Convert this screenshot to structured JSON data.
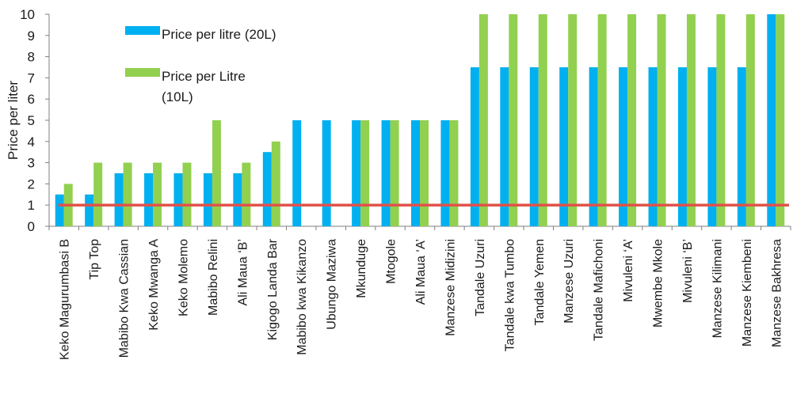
{
  "chart_data": {
    "type": "bar",
    "title": "",
    "xlabel": "",
    "ylabel": "Price per liter",
    "ylim": [
      0,
      10
    ],
    "yticks": [
      0,
      1,
      2,
      3,
      4,
      5,
      6,
      7,
      8,
      9,
      10
    ],
    "grid": false,
    "legend_position": "top-left",
    "categories": [
      "Keko Magurumbasi B",
      "Tip Top",
      "Mabibo Kwa Cassian",
      "Keko Mwanga A",
      "Keko Molemo",
      "Mabibo Relini",
      "Ali Maua ‘B’",
      "Kigogo Landa Bar",
      "Mabibo kwa Kikanzo",
      "Ubungo Maziwa",
      "Mkunduge",
      "Mtogole",
      "Ali Maua ‘A’",
      "Manzese Midizini",
      "Tandale Uzuri",
      "Tandale kwa Tumbo",
      "Tandale Yemen",
      "Manzese Uzuri",
      "Tandale Mafichoni",
      "Mivuleni ‘A’",
      "Mwembe Mkole",
      "Mivuleni ‘B’",
      "Manzese Kilimani",
      "Manzese Kiembeni",
      "Manzese Bakhresa"
    ],
    "series": [
      {
        "name": "Price per litre (20L)",
        "color": "#00b0f0",
        "values": [
          1.5,
          1.5,
          2.5,
          2.5,
          2.5,
          2.5,
          2.5,
          3.5,
          5,
          5,
          5,
          5,
          5,
          5,
          7.5,
          7.5,
          7.5,
          7.5,
          7.5,
          7.5,
          7.5,
          7.5,
          7.5,
          7.5,
          10
        ]
      },
      {
        "name": "Price per Litre (10L)",
        "color": "#92d050",
        "values": [
          2,
          3,
          3,
          3,
          3,
          5,
          3,
          4,
          0,
          0,
          5,
          5,
          5,
          5,
          10,
          10,
          10,
          10,
          10,
          10,
          10,
          10,
          10,
          10,
          10
        ]
      }
    ],
    "reference_line": {
      "value": 1,
      "color": "#e0534a"
    },
    "legend": [
      {
        "lines": [
          "Price per litre (20L)"
        ],
        "color": "#00b0f0"
      },
      {
        "lines": [
          "Price per Litre",
          "(10L)"
        ],
        "color": "#92d050"
      }
    ]
  }
}
